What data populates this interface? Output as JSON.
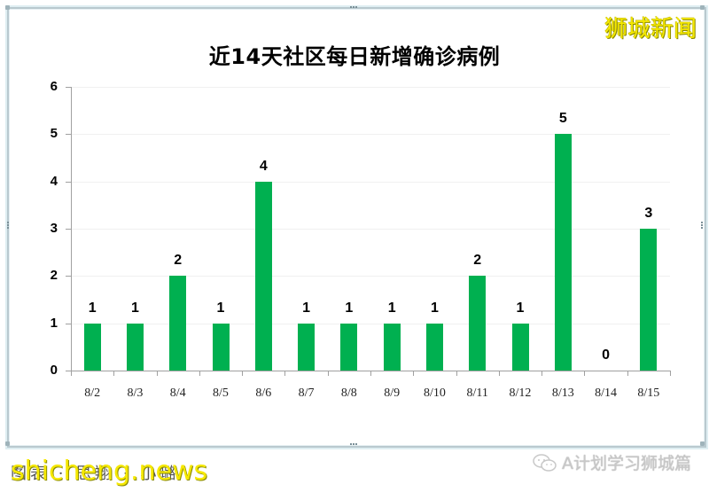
{
  "chart_data": {
    "type": "bar",
    "title": "近14天社区每日新增确诊病例",
    "categories": [
      "8/2",
      "8/3",
      "8/4",
      "8/5",
      "8/6",
      "8/7",
      "8/8",
      "8/9",
      "8/10",
      "8/11",
      "8/12",
      "8/13",
      "8/14",
      "8/15"
    ],
    "values": [
      1,
      1,
      2,
      1,
      4,
      1,
      1,
      1,
      1,
      2,
      1,
      5,
      0,
      3
    ],
    "xlabel": "",
    "ylabel": "",
    "ylim": [
      0,
      6
    ],
    "yticks": [
      "0",
      "1",
      "2",
      "3",
      "4",
      "5",
      "6"
    ],
    "grid": true,
    "legend": "none",
    "data_labels": true,
    "bar_color": "#00b050"
  },
  "overlay": {
    "brand": "狮城新闻",
    "credit": "图表 · 思翔 · 小璐",
    "watermark": "shicheng.news",
    "wechat_account": "A计划学习狮城篇"
  }
}
